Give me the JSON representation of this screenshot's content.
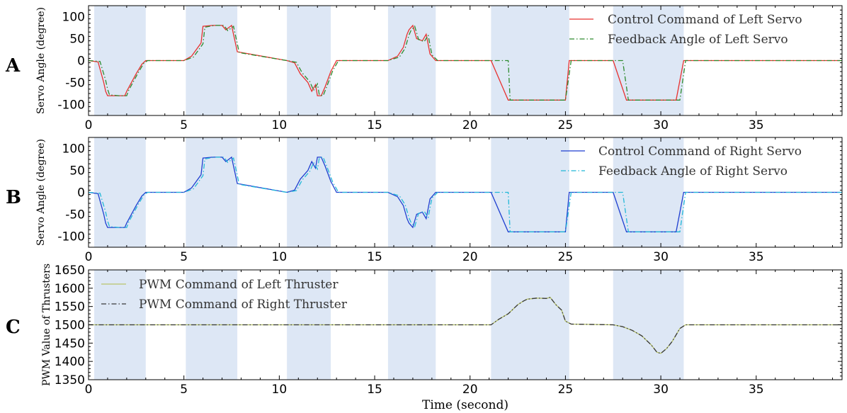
{
  "figure": {
    "x_label": "Time (second)",
    "highlight_color": "#dde7f5"
  },
  "chart_data": [
    {
      "type": "line",
      "panel": "A",
      "ylabel": "Servo Angle (degree)",
      "xlim": [
        0,
        39.5
      ],
      "ylim": [
        -125,
        125
      ],
      "x_ticks": [
        0,
        5,
        10,
        15,
        20,
        25,
        30,
        35
      ],
      "y_ticks": [
        -100,
        -50,
        0,
        50,
        100
      ],
      "legend_position": "top-right",
      "shaded_intervals": [
        [
          0.3,
          3.0
        ],
        [
          5.1,
          7.8
        ],
        [
          10.4,
          12.7
        ],
        [
          15.7,
          18.2
        ],
        [
          21.1,
          25.2
        ],
        [
          27.5,
          31.2
        ]
      ],
      "series": [
        {
          "name": "Control Command of Left Servo",
          "color": "#e8312f",
          "style": "solid",
          "x": [
            0,
            0.5,
            0.8,
            0.9,
            1.0,
            1.5,
            1.9,
            2.0,
            2.5,
            2.8,
            3.0,
            5.0,
            5.4,
            5.9,
            6.0,
            6.5,
            7.0,
            7.2,
            7.5,
            7.8,
            10.4,
            10.8,
            11.1,
            11.5,
            11.7,
            11.9,
            12.0,
            12.2,
            12.4,
            12.7,
            13.0,
            15.7,
            16.2,
            16.5,
            16.7,
            16.8,
            17.0,
            17.2,
            17.5,
            17.7,
            17.9,
            18.2,
            21.1,
            22.0,
            25.0,
            25.2,
            27.5,
            28.2,
            30.8,
            31.2,
            39.5
          ],
          "y": [
            0,
            -3,
            -50,
            -70,
            -80,
            -80,
            -80,
            -70,
            -30,
            -8,
            0,
            0,
            10,
            40,
            78,
            80,
            80,
            70,
            80,
            20,
            0,
            -5,
            -30,
            -50,
            -70,
            -55,
            -80,
            -80,
            -60,
            -25,
            0,
            0,
            10,
            30,
            60,
            70,
            80,
            50,
            45,
            60,
            15,
            0,
            0,
            -90,
            -90,
            0,
            0,
            -90,
            -90,
            0,
            0
          ]
        },
        {
          "name": "Feedback Angle of Left Servo",
          "color": "#2e8b2e",
          "style": "dashdot",
          "x": [
            0,
            0.6,
            0.9,
            1.0,
            1.1,
            1.6,
            2.0,
            2.1,
            2.6,
            2.9,
            3.1,
            5.0,
            5.5,
            6.0,
            6.1,
            6.6,
            7.1,
            7.3,
            7.6,
            7.9,
            10.4,
            10.9,
            11.2,
            11.6,
            11.8,
            12.0,
            12.1,
            12.3,
            12.5,
            12.8,
            13.1,
            15.7,
            16.3,
            16.6,
            16.8,
            16.9,
            17.1,
            17.3,
            17.6,
            17.8,
            18.0,
            18.3,
            22.0,
            22.1,
            25.0,
            25.3,
            28.0,
            28.3,
            31.0,
            31.3,
            39.5
          ],
          "y": [
            0,
            -2,
            -45,
            -65,
            -78,
            -80,
            -80,
            -68,
            -28,
            -6,
            0,
            0,
            8,
            38,
            76,
            80,
            80,
            68,
            78,
            18,
            0,
            -4,
            -28,
            -48,
            -68,
            -53,
            -78,
            -80,
            -58,
            -23,
            0,
            0,
            8,
            28,
            58,
            68,
            78,
            48,
            43,
            58,
            13,
            0,
            0,
            -90,
            -90,
            0,
            0,
            -90,
            -90,
            0,
            0
          ]
        }
      ]
    },
    {
      "type": "line",
      "panel": "B",
      "ylabel": "Servo Angle (degree)",
      "xlim": [
        0,
        39.5
      ],
      "ylim": [
        -125,
        125
      ],
      "x_ticks": [
        0,
        5,
        10,
        15,
        20,
        25,
        30,
        35
      ],
      "y_ticks": [
        -100,
        -50,
        0,
        50,
        100
      ],
      "legend_position": "top-right",
      "shaded_intervals": [
        [
          0.3,
          3.0
        ],
        [
          5.1,
          7.8
        ],
        [
          10.4,
          12.7
        ],
        [
          15.7,
          18.2
        ],
        [
          21.1,
          25.2
        ],
        [
          27.5,
          31.2
        ]
      ],
      "series": [
        {
          "name": "Control Command of Right Servo",
          "color": "#1f3fd0",
          "style": "solid",
          "x": [
            0,
            0.5,
            0.8,
            0.9,
            1.0,
            1.5,
            1.9,
            2.0,
            2.5,
            2.8,
            3.0,
            5.0,
            5.4,
            5.9,
            6.0,
            6.5,
            7.0,
            7.2,
            7.5,
            7.8,
            10.4,
            10.8,
            11.1,
            11.5,
            11.7,
            11.9,
            12.0,
            12.2,
            12.4,
            12.7,
            13.0,
            15.7,
            16.2,
            16.5,
            16.7,
            16.8,
            17.0,
            17.2,
            17.5,
            17.7,
            17.9,
            18.2,
            21.1,
            22.0,
            25.0,
            25.2,
            27.5,
            28.2,
            30.8,
            31.2,
            39.5
          ],
          "y": [
            0,
            -3,
            -50,
            -70,
            -80,
            -80,
            -80,
            -70,
            -30,
            -8,
            0,
            0,
            10,
            40,
            78,
            80,
            80,
            70,
            80,
            20,
            0,
            5,
            30,
            50,
            70,
            55,
            80,
            80,
            60,
            25,
            0,
            0,
            -10,
            -30,
            -60,
            -70,
            -80,
            -50,
            -45,
            -60,
            -15,
            0,
            0,
            -90,
            -90,
            0,
            0,
            -90,
            -90,
            0,
            0
          ]
        },
        {
          "name": "Feedback Angle of Right Servo",
          "color": "#22b8d8",
          "style": "dashdot",
          "x": [
            0,
            0.6,
            0.9,
            1.0,
            1.1,
            1.6,
            2.0,
            2.1,
            2.6,
            2.9,
            3.1,
            5.0,
            5.5,
            6.0,
            6.1,
            6.6,
            7.1,
            7.3,
            7.6,
            7.9,
            10.4,
            10.9,
            11.2,
            11.6,
            11.8,
            12.0,
            12.1,
            12.3,
            12.5,
            12.8,
            13.1,
            15.7,
            16.3,
            16.6,
            16.8,
            16.9,
            17.1,
            17.3,
            17.6,
            17.8,
            18.0,
            18.3,
            22.0,
            22.1,
            25.0,
            25.3,
            28.0,
            28.3,
            31.0,
            31.3,
            39.5
          ],
          "y": [
            0,
            -2,
            -45,
            -65,
            -78,
            -80,
            -80,
            -68,
            -28,
            -6,
            0,
            0,
            8,
            38,
            76,
            80,
            80,
            68,
            78,
            18,
            0,
            4,
            28,
            48,
            68,
            53,
            78,
            80,
            58,
            23,
            0,
            0,
            -8,
            -28,
            -58,
            -68,
            -78,
            -48,
            -43,
            -58,
            -13,
            0,
            0,
            -90,
            -90,
            0,
            0,
            -90,
            -90,
            0,
            0
          ]
        }
      ]
    },
    {
      "type": "line",
      "panel": "C",
      "ylabel": "PWM Value of Thrusters",
      "xlim": [
        0,
        39.5
      ],
      "ylim": [
        1350,
        1650
      ],
      "x_ticks": [
        0,
        5,
        10,
        15,
        20,
        25,
        30,
        35
      ],
      "y_ticks": [
        1350,
        1400,
        1450,
        1500,
        1550,
        1600,
        1650
      ],
      "legend_position": "top-left",
      "shaded_intervals": [
        [
          0.3,
          3.0
        ],
        [
          5.1,
          7.8
        ],
        [
          10.4,
          12.7
        ],
        [
          15.7,
          18.2
        ],
        [
          21.1,
          25.2
        ],
        [
          27.5,
          31.2
        ]
      ],
      "series": [
        {
          "name": "PWM Command of Left Thruster",
          "color": "#b8c46a",
          "style": "solid",
          "x": [
            0,
            21.1,
            21.5,
            22.0,
            22.5,
            22.8,
            23.0,
            23.5,
            24.0,
            24.2,
            24.5,
            24.8,
            25.0,
            25.3,
            27.5,
            28.0,
            28.5,
            29.0,
            29.5,
            29.8,
            30.0,
            30.3,
            30.6,
            31.0,
            31.3,
            39.5
          ],
          "y": [
            1500,
            1500,
            1515,
            1530,
            1555,
            1565,
            1570,
            1573,
            1572,
            1575,
            1555,
            1540,
            1510,
            1502,
            1500,
            1495,
            1485,
            1470,
            1445,
            1425,
            1422,
            1435,
            1455,
            1490,
            1500,
            1500
          ]
        },
        {
          "name": "PWM Command of Right Thruster",
          "color": "#3a3a3a",
          "style": "dashdot",
          "x": [
            0,
            21.1,
            21.5,
            22.0,
            22.5,
            22.8,
            23.0,
            23.5,
            24.0,
            24.2,
            24.5,
            24.8,
            25.0,
            25.3,
            27.5,
            28.0,
            28.5,
            29.0,
            29.5,
            29.8,
            30.0,
            30.3,
            30.6,
            31.0,
            31.3,
            39.5
          ],
          "y": [
            1500,
            1500,
            1515,
            1530,
            1555,
            1565,
            1570,
            1573,
            1572,
            1575,
            1555,
            1540,
            1510,
            1502,
            1500,
            1495,
            1485,
            1470,
            1445,
            1425,
            1422,
            1435,
            1455,
            1490,
            1500,
            1500
          ]
        }
      ]
    }
  ]
}
